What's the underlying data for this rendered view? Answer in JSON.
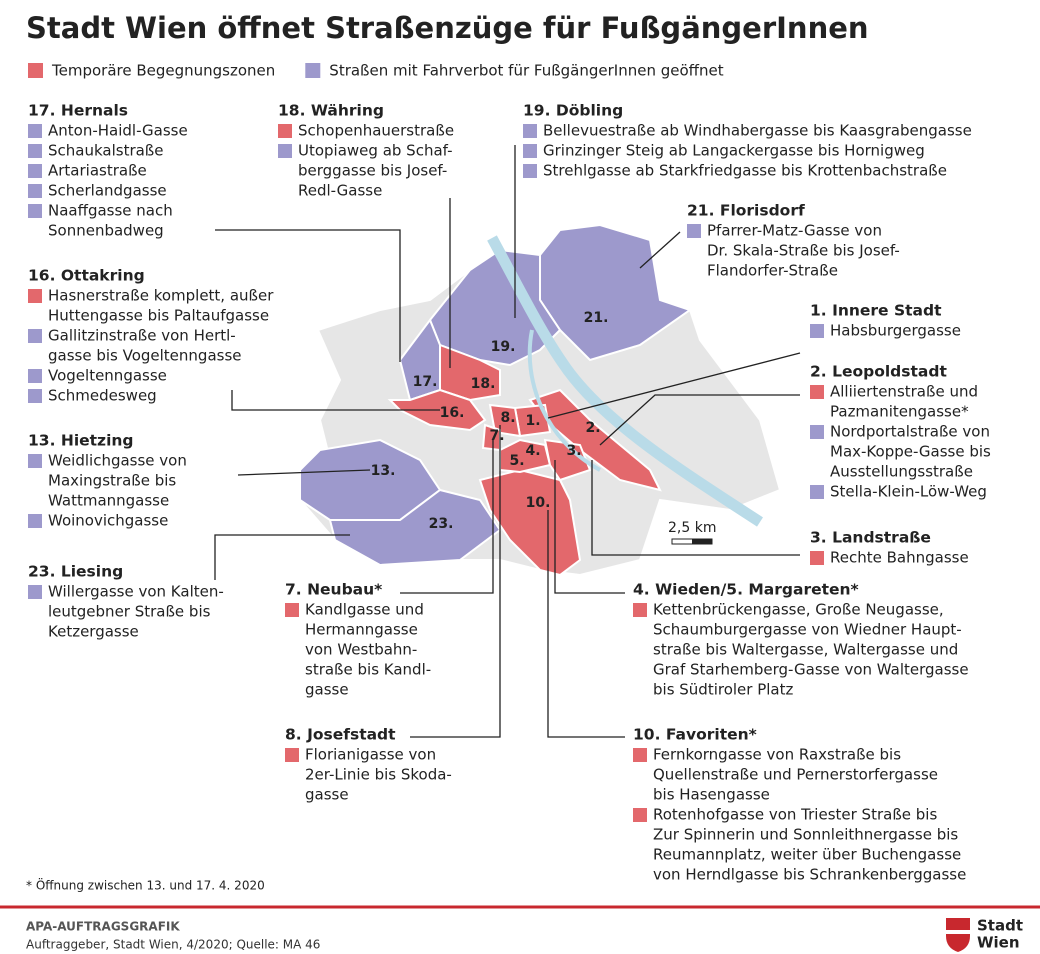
{
  "title": "Stadt Wien öffnet Straßenzüge für FußgängerInnen",
  "legend": [
    {
      "label": "Temporäre Begegnungszonen",
      "color": "#e3686c"
    },
    {
      "label": "Straßen mit Fahrverbot für FußgängerInnen geöffnet",
      "color": "#9d99cc"
    }
  ],
  "districts": [
    {
      "name": "17. Hernals",
      "streets": [
        {
          "kind": 1,
          "lines": [
            "Anton-Haidl-Gasse"
          ]
        },
        {
          "kind": 1,
          "lines": [
            "Schaukalstraße"
          ]
        },
        {
          "kind": 1,
          "lines": [
            "Artariastraße"
          ]
        },
        {
          "kind": 1,
          "lines": [
            "Scherlandgasse"
          ]
        },
        {
          "kind": 1,
          "lines": [
            "Naaffgasse nach",
            "Sonnenbadweg"
          ]
        }
      ]
    },
    {
      "name": "18. Währing",
      "streets": [
        {
          "kind": 0,
          "lines": [
            "Schopenhauerstraße"
          ]
        },
        {
          "kind": 1,
          "lines": [
            "Utopiaweg ab Schaf-",
            "berggasse bis Josef-",
            "Redl-Gasse"
          ]
        }
      ]
    },
    {
      "name": "19. Döbling",
      "streets": [
        {
          "kind": 1,
          "lines": [
            "Bellevuestraße ab Windhabergasse bis Kaasgrabengasse"
          ]
        },
        {
          "kind": 1,
          "lines": [
            "Grinzinger Steig ab Langackergasse bis Hornigweg"
          ]
        },
        {
          "kind": 1,
          "lines": [
            "Strehlgasse ab Starkfriedgasse bis Krottenbachstraße"
          ]
        }
      ]
    },
    {
      "name": "21. Florisdorf",
      "streets": [
        {
          "kind": 1,
          "lines": [
            "Pfarrer-Matz-Gasse von",
            "Dr. Skala-Straße bis Josef-",
            "Flandorfer-Straße"
          ]
        }
      ]
    },
    {
      "name": "16. Ottakring",
      "streets": [
        {
          "kind": 0,
          "lines": [
            "Hasnerstraße komplett, außer",
            "Huttengasse bis Paltaufgasse"
          ]
        },
        {
          "kind": 1,
          "lines": [
            "Gallitzinstraße von Hertl-",
            "gasse bis Vogeltenngasse"
          ]
        },
        {
          "kind": 1,
          "lines": [
            "Vogeltenngasse"
          ]
        },
        {
          "kind": 1,
          "lines": [
            "Schmedesweg"
          ]
        }
      ]
    },
    {
      "name": "1. Innere Stadt",
      "streets": [
        {
          "kind": 1,
          "lines": [
            "Habsburgergasse"
          ]
        }
      ]
    },
    {
      "name": "2. Leopoldstadt",
      "streets": [
        {
          "kind": 0,
          "lines": [
            "Alliiertenstraße und",
            "Pazmanitengasse*"
          ]
        },
        {
          "kind": 1,
          "lines": [
            "Nordportalstraße von",
            "Max-Koppe-Gasse bis",
            "Ausstellungsstraße"
          ]
        },
        {
          "kind": 1,
          "lines": [
            "Stella-Klein-Löw-Weg"
          ]
        }
      ]
    },
    {
      "name": "13. Hietzing",
      "streets": [
        {
          "kind": 1,
          "lines": [
            "Weidlichgasse von",
            "Maxingstraße bis",
            "Wattmanngasse"
          ]
        },
        {
          "kind": 1,
          "lines": [
            "Woinovichgasse"
          ]
        }
      ]
    },
    {
      "name": "3. Landstraße",
      "streets": [
        {
          "kind": 0,
          "lines": [
            "Rechte Bahngasse"
          ]
        }
      ]
    },
    {
      "name": "23. Liesing",
      "streets": [
        {
          "kind": 1,
          "lines": [
            "Willergasse von Kalten-",
            "leutgebner Straße bis",
            "Ketzergasse"
          ]
        }
      ]
    },
    {
      "name": "7. Neubau*",
      "streets": [
        {
          "kind": 0,
          "lines": [
            "Kandlgasse und",
            "Hermanngasse",
            "von Westbahn-",
            "straße bis Kandl-",
            "gasse"
          ]
        }
      ]
    },
    {
      "name": "4. Wieden/5. Margareten*",
      "streets": [
        {
          "kind": 0,
          "lines": [
            "Kettenbrückengasse, Große Neugasse,",
            "Schaumburgergasse von Wiedner Haupt-",
            "straße bis Waltergasse, Waltergasse und",
            "Graf Starhemberg-Gasse von Waltergasse",
            "bis Südtiroler Platz"
          ]
        }
      ]
    },
    {
      "name": "8. Josefstadt",
      "streets": [
        {
          "kind": 0,
          "lines": [
            "Florianigasse von",
            "2er-Linie bis Skoda-",
            "gasse"
          ]
        }
      ]
    },
    {
      "name": "10. Favoriten*",
      "streets": [
        {
          "kind": 0,
          "lines": [
            "Fernkorngasse von Raxstraße bis",
            "Quellenstraße und Pernerstorfergasse",
            "bis Hasengasse"
          ]
        },
        {
          "kind": 0,
          "lines": [
            "Rotenhofgasse von Triester Straße bis",
            "Zur Spinnerin und Sonnleithnergasse bis",
            "Reumannplatz, weiter über Buchengasse",
            "von Herndlgasse bis Schrankenberggasse"
          ]
        }
      ]
    }
  ],
  "map_labels": [
    "21.",
    "19.",
    "17.",
    "18.",
    "16.",
    "8.",
    "1.",
    "2.",
    "7.",
    "4.",
    "3.",
    "5.",
    "13.",
    "10.",
    "23."
  ],
  "scale": "2,5 km",
  "footnote": "* Öffnung zwischen 13. und 17. 4. 2020",
  "credit": "APA-AUFTRAGSGRAFIK",
  "source": "Auftraggeber, Stadt Wien, 4/2020; Quelle: MA 46",
  "logo": [
    "Stadt",
    "Wien"
  ]
}
